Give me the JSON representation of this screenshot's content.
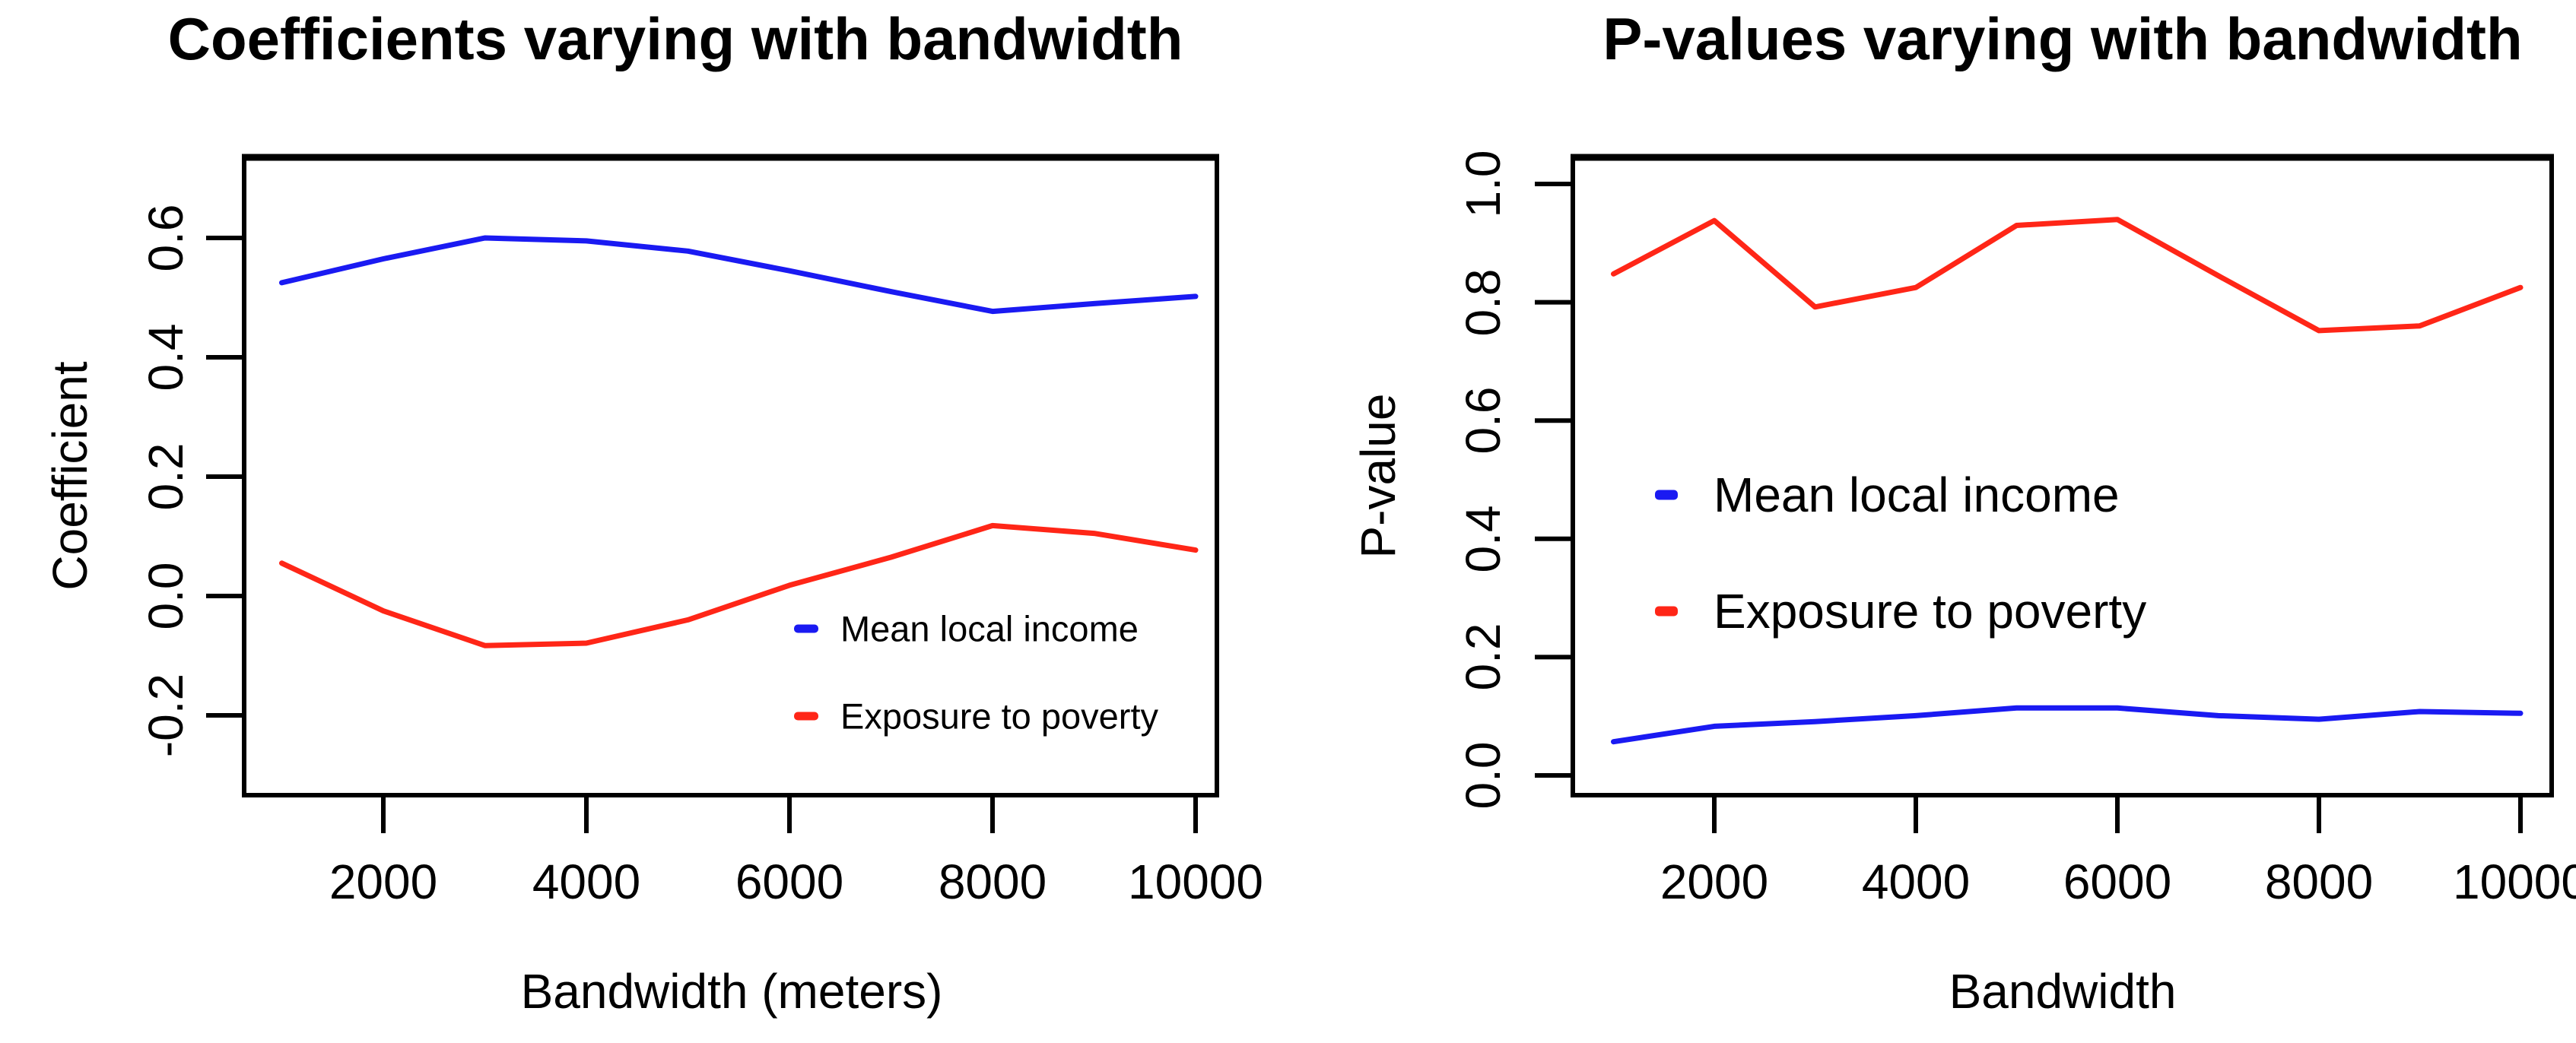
{
  "figure": {
    "background": "#ffffff",
    "text_color": "#000000",
    "axis_color": "#000000"
  },
  "colors": {
    "blue": "#1a1af2",
    "red": "#ff2617"
  },
  "chart_data": [
    {
      "type": "line",
      "title": "Coefficients varying with bandwidth",
      "xlabel": "Bandwidth (meters)",
      "ylabel": "Coefficient",
      "x": [
        1000,
        2000,
        3000,
        4000,
        5000,
        6000,
        7000,
        8000,
        9000,
        10000
      ],
      "series": [
        {
          "name": "Mean local income",
          "color": "#1a1af2",
          "values": [
            0.525,
            0.565,
            0.6,
            0.595,
            0.578,
            0.545,
            0.51,
            0.477,
            0.49,
            0.502
          ]
        },
        {
          "name": "Exposure to poverty",
          "color": "#ff2617",
          "values": [
            0.055,
            -0.025,
            -0.083,
            -0.079,
            -0.04,
            0.018,
            0.065,
            0.118,
            0.105,
            0.077
          ]
        }
      ],
      "x_ticks": [
        2000,
        4000,
        6000,
        8000,
        10000
      ],
      "x_tick_labels": [
        "2000",
        "4000",
        "6000",
        "8000",
        "10000"
      ],
      "y_ticks": [
        0.6,
        0.4,
        0.2,
        0.0,
        -0.2
      ],
      "y_tick_labels": [
        "0.6",
        "0.4",
        "0.2",
        "0.0",
        "-0.2"
      ],
      "xlim": [
        629,
        10210
      ],
      "ylim": [
        -0.334,
        0.735
      ],
      "grid": false,
      "legend_position": "inside lower-right",
      "legend": [
        "Mean local income",
        "Exposure to poverty"
      ]
    },
    {
      "type": "line",
      "title": "P-values varying with bandwidth",
      "xlabel": "Bandwidth",
      "ylabel": "P-value",
      "x": [
        1000,
        2000,
        3000,
        4000,
        5000,
        6000,
        7000,
        8000,
        9000,
        10000
      ],
      "series": [
        {
          "name": "Mean local income",
          "color": "#1a1af2",
          "values": [
            0.057,
            0.083,
            0.091,
            0.101,
            0.114,
            0.114,
            0.101,
            0.095,
            0.108,
            0.105
          ]
        },
        {
          "name": "Exposure to poverty",
          "color": "#ff2617",
          "values": [
            0.848,
            0.938,
            0.792,
            0.825,
            0.93,
            0.94,
            0.845,
            0.752,
            0.76,
            0.825
          ]
        }
      ],
      "x_ticks": [
        2000,
        4000,
        6000,
        8000,
        10000
      ],
      "x_tick_labels": [
        "2000",
        "4000",
        "6000",
        "8000",
        "10000"
      ],
      "y_ticks": [
        1.0,
        0.8,
        0.6,
        0.4,
        0.2,
        0.0
      ],
      "y_tick_labels": [
        "1.0",
        "0.8",
        "0.6",
        "0.4",
        "0.2",
        "0.0"
      ],
      "xlim": [
        596,
        10309
      ],
      "ylim": [
        -0.033,
        1.045
      ],
      "grid": false,
      "legend_position": "inside middle-left",
      "legend": [
        "Mean local income",
        "Exposure to poverty"
      ]
    }
  ]
}
